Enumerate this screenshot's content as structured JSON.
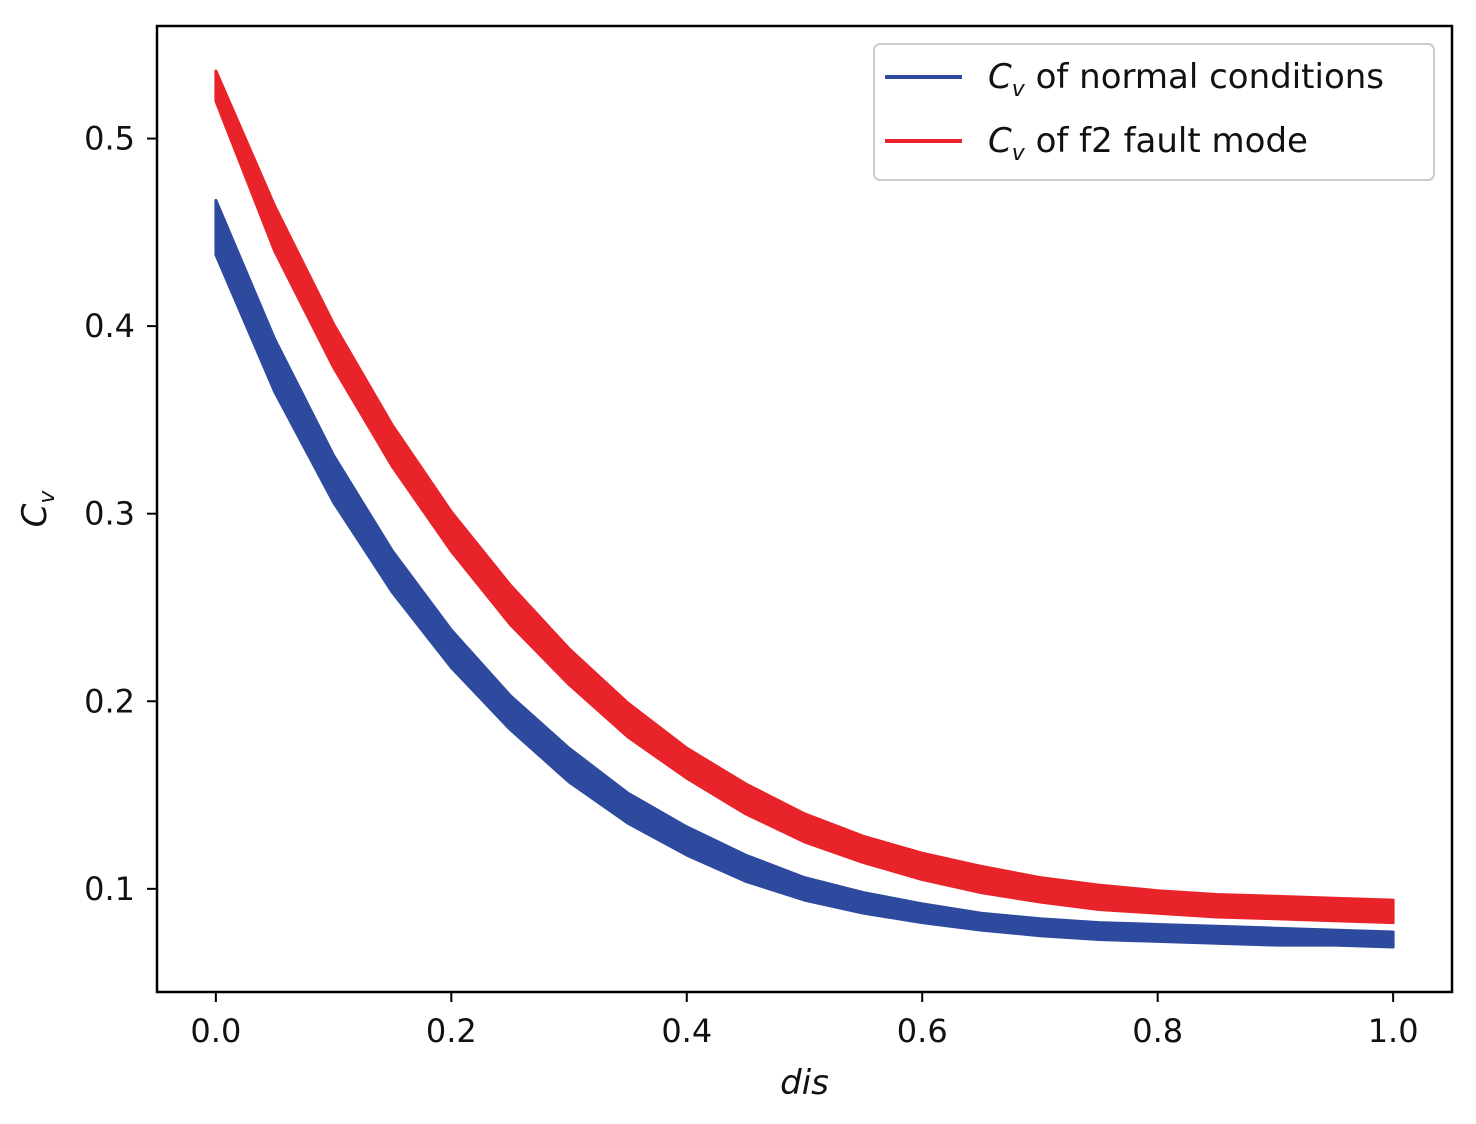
{
  "chart_data": {
    "type": "line",
    "title": "",
    "xlabel": "dis",
    "ylabel_base": "C",
    "ylabel_sub": "v",
    "xlim": [
      -0.05,
      1.05
    ],
    "ylim": [
      0.045,
      0.56
    ],
    "xticks": [
      0.0,
      0.2,
      0.4,
      0.6,
      0.8,
      1.0
    ],
    "xtick_labels": [
      "0.0",
      "0.2",
      "0.4",
      "0.6",
      "0.8",
      "1.0"
    ],
    "yticks": [
      0.1,
      0.2,
      0.3,
      0.4,
      0.5
    ],
    "ytick_labels": [
      "0.1",
      "0.2",
      "0.3",
      "0.4",
      "0.5"
    ],
    "grid": false,
    "legend_position": "top-right",
    "series": [
      {
        "name": "normal",
        "legend_base": "C",
        "legend_sub": "v",
        "legend_rest": " of normal conditions",
        "color": "#2e4a9e",
        "x": [
          0.0,
          0.05,
          0.1,
          0.15,
          0.2,
          0.25,
          0.3,
          0.35,
          0.4,
          0.45,
          0.5,
          0.55,
          0.6,
          0.65,
          0.7,
          0.75,
          0.8,
          0.85,
          0.9,
          0.95,
          1.0
        ],
        "upper": [
          0.467,
          0.393,
          0.331,
          0.28,
          0.238,
          0.203,
          0.175,
          0.151,
          0.133,
          0.118,
          0.106,
          0.098,
          0.092,
          0.087,
          0.084,
          0.082,
          0.081,
          0.08,
          0.079,
          0.078,
          0.077
        ],
        "lower": [
          0.438,
          0.365,
          0.306,
          0.258,
          0.218,
          0.185,
          0.157,
          0.135,
          0.118,
          0.104,
          0.094,
          0.087,
          0.082,
          0.078,
          0.075,
          0.073,
          0.072,
          0.071,
          0.07,
          0.07,
          0.069
        ]
      },
      {
        "name": "f2",
        "legend_base": "C",
        "legend_sub": "v",
        "legend_rest": " of f2 fault mode",
        "color": "#e8242a",
        "x": [
          0.0,
          0.05,
          0.1,
          0.15,
          0.2,
          0.25,
          0.3,
          0.35,
          0.4,
          0.45,
          0.5,
          0.55,
          0.6,
          0.65,
          0.7,
          0.75,
          0.8,
          0.85,
          0.9,
          0.95,
          1.0
        ],
        "upper": [
          0.536,
          0.464,
          0.401,
          0.347,
          0.301,
          0.262,
          0.228,
          0.199,
          0.175,
          0.156,
          0.14,
          0.128,
          0.119,
          0.112,
          0.106,
          0.102,
          0.099,
          0.097,
          0.096,
          0.095,
          0.094
        ],
        "lower": [
          0.52,
          0.44,
          0.378,
          0.325,
          0.28,
          0.241,
          0.209,
          0.181,
          0.159,
          0.14,
          0.125,
          0.114,
          0.105,
          0.098,
          0.093,
          0.089,
          0.087,
          0.085,
          0.084,
          0.083,
          0.082
        ]
      }
    ]
  }
}
